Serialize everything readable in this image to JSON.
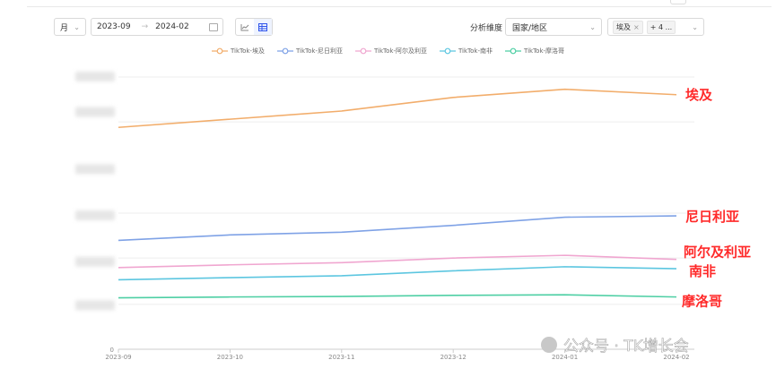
{
  "toolbar": {
    "period_select": "月",
    "date_start": "2023-09",
    "date_end": "2024-02",
    "dimension_label": "分析维度",
    "dimension_value": "国家/地区",
    "selected_tag": "埃及",
    "more_tags": "+ 4 ..."
  },
  "colors": {
    "egypt": "#f2ad6b",
    "nigeria": "#7fa2e6",
    "algeria": "#f0a6d0",
    "south_africa": "#5cc6e0",
    "morocco": "#4ecfa4",
    "annotation": "#ff2a2a"
  },
  "watermark": "公众号 · TK增长会",
  "chart_data": {
    "type": "line",
    "x": [
      "2023-09",
      "2023-10",
      "2023-11",
      "2023-12",
      "2024-01",
      "2024-02"
    ],
    "ylim": [
      0,
      100
    ],
    "grid": true,
    "legend_position": "top-center",
    "y_tick_labels": [
      "0"
    ],
    "series": [
      {
        "name": "TikTok-埃及",
        "color_key": "egypt",
        "values": [
          81.5,
          84.5,
          87.5,
          92.5,
          95.5,
          93.5
        ]
      },
      {
        "name": "TikTok-尼日利亚",
        "color_key": "nigeria",
        "values": [
          40,
          42,
          43,
          45.5,
          48.5,
          49
        ]
      },
      {
        "name": "TikTok-阿尔及利亚",
        "color_key": "algeria",
        "values": [
          30,
          31,
          31.8,
          33.5,
          34.5,
          33
        ]
      },
      {
        "name": "TikTok-南非",
        "color_key": "south_africa",
        "values": [
          25.5,
          26.3,
          27,
          28.8,
          30.3,
          29.6
        ]
      },
      {
        "name": "TikTok-摩洛哥",
        "color_key": "morocco",
        "values": [
          18.9,
          19.2,
          19.4,
          19.8,
          20,
          19.2
        ]
      }
    ],
    "annotations": [
      {
        "text": "埃及",
        "series": 0
      },
      {
        "text": "尼日利亚",
        "series": 1
      },
      {
        "text": "阿尔及利亚",
        "series": 2
      },
      {
        "text": "南非",
        "series": 3
      },
      {
        "text": "摩洛哥",
        "series": 4
      }
    ]
  }
}
